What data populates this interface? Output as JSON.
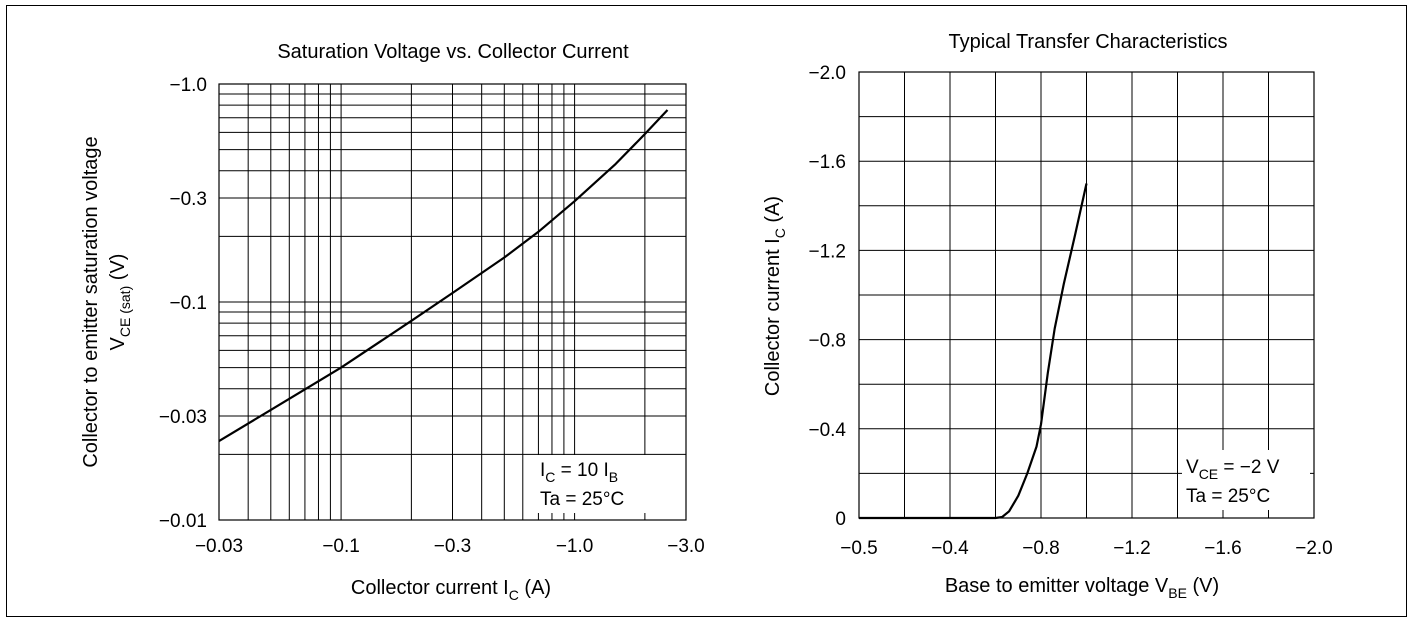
{
  "chart_data": [
    {
      "type": "line",
      "title": "Saturation Voltage vs. Collector Current",
      "scale": "log-log",
      "xlabel": {
        "main": "Collector current  I",
        "sub": "C",
        "unit": "  (A)"
      },
      "ylabel": {
        "line1": "Collector to emitter saturation voltage",
        "line2_main": "V",
        "line2_sub": "CE (sat)",
        "line2_unit": "  (V)"
      },
      "x_ticks": [
        "−0.03",
        "−0.1",
        "−0.3",
        "−1.0",
        "−3.0"
      ],
      "y_ticks": [
        "−1.0",
        "−0.3",
        "−0.1",
        "−0.03",
        "−0.01"
      ],
      "xlim": [
        -0.03,
        -3.0
      ],
      "ylim": [
        -0.01,
        -1.0
      ],
      "grid": true,
      "annotation": {
        "line1_main": "I",
        "line1_sub": "C",
        "line1_mid": " = 10 I",
        "line1_sub2": "B",
        "line2": "Ta = 25°C",
        "position": "bottom-right"
      },
      "series": [
        {
          "x": [
            -0.03,
            -0.05,
            -0.1,
            -0.2,
            -0.3,
            -0.5,
            -0.7,
            -1.0,
            -1.5,
            -2.0,
            -2.5
          ],
          "y": [
            -0.023,
            -0.032,
            -0.05,
            -0.082,
            -0.11,
            -0.16,
            -0.21,
            -0.29,
            -0.43,
            -0.59,
            -0.76
          ]
        }
      ]
    },
    {
      "type": "line",
      "title": "Typical Transfer Characteristics",
      "xlabel": {
        "main": "Base to emitter voltage  V",
        "sub": "BE",
        "unit": "  (V)"
      },
      "ylabel": {
        "main": "Collector current  I",
        "sub": "C",
        "unit": "  (A)"
      },
      "x_ticks": [
        "−0.5",
        "−0.4",
        "−0.8",
        "−1.2",
        "−1.6",
        "−2.0"
      ],
      "y_ticks": [
        "−2.0",
        "−1.6",
        "−1.2",
        "−0.8",
        "−0.4",
        "0"
      ],
      "xlim": [
        0,
        -2.0
      ],
      "ylim": [
        0,
        -2.0
      ],
      "grid": true,
      "annotation": {
        "line1_main": "V",
        "line1_sub": "CE",
        "line1_rest": " = −2 V",
        "line2": "Ta = 25°C",
        "position": "bottom-right"
      },
      "series": [
        {
          "x": [
            0,
            -0.6,
            -0.63,
            -0.66,
            -0.7,
            -0.74,
            -0.78,
            -0.8,
            -0.83,
            -0.86,
            -0.9,
            -0.95,
            -1.0
          ],
          "y": [
            0,
            0,
            -0.005,
            -0.03,
            -0.1,
            -0.2,
            -0.32,
            -0.42,
            -0.65,
            -0.85,
            -1.05,
            -1.27,
            -1.5
          ]
        }
      ]
    }
  ]
}
